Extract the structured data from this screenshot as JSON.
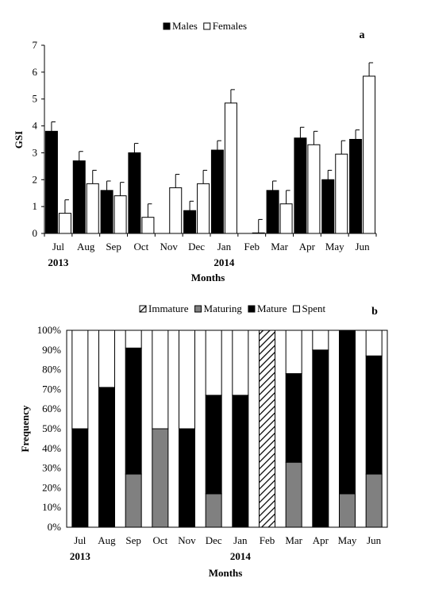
{
  "chart_data": [
    {
      "type": "bar",
      "panel_label": "a",
      "categories": [
        "Jul",
        "Aug",
        "Sep",
        "Oct",
        "Nov",
        "Dec",
        "Jan",
        "Feb",
        "Mar",
        "Apr",
        "May",
        "Jun"
      ],
      "year_labels": [
        {
          "label": "2013",
          "category": "Jul"
        },
        {
          "label": "2014",
          "category": "Jan"
        }
      ],
      "xlabel": "Months",
      "ylabel": "GSI",
      "ylim": [
        0,
        7
      ],
      "yticks": [
        "0",
        "1",
        "2",
        "3",
        "4",
        "5",
        "6",
        "7"
      ],
      "grid": false,
      "legend_position": "top-center",
      "series": [
        {
          "name": "Males",
          "color": "#000000",
          "values": [
            3.8,
            2.7,
            1.6,
            3.0,
            null,
            0.85,
            3.1,
            null,
            1.6,
            3.55,
            2.0,
            3.5
          ],
          "errors": [
            0.35,
            0.35,
            0.35,
            0.35,
            null,
            0.35,
            0.35,
            null,
            0.35,
            0.4,
            0.35,
            0.35
          ]
        },
        {
          "name": "Females",
          "color": "#ffffff",
          "values": [
            0.75,
            1.85,
            1.4,
            0.6,
            1.7,
            1.85,
            4.85,
            0.02,
            1.1,
            3.3,
            2.95,
            5.85
          ],
          "errors": [
            0.5,
            0.5,
            0.5,
            0.5,
            0.5,
            0.5,
            0.5,
            0.5,
            0.5,
            0.5,
            0.5,
            0.5
          ]
        }
      ]
    },
    {
      "type": "bar",
      "stacked": true,
      "panel_label": "b",
      "categories": [
        "Jul",
        "Aug",
        "Sep",
        "Oct",
        "Nov",
        "Dec",
        "Jan",
        "Feb",
        "Mar",
        "Apr",
        "May",
        "Jun"
      ],
      "year_labels": [
        {
          "label": "2013",
          "category": "Jul"
        },
        {
          "label": "2014",
          "category": "Jan"
        }
      ],
      "xlabel": "Months",
      "ylabel": "Frequency",
      "ylim": [
        0,
        100
      ],
      "yticks": [
        "0%",
        "10%",
        "20%",
        "30%",
        "40%",
        "50%",
        "60%",
        "70%",
        "80%",
        "90%",
        "100%"
      ],
      "grid": false,
      "legend_position": "top-center",
      "series": [
        {
          "name": "Immature",
          "color": "#ffffff",
          "pattern": "hatch",
          "values": [
            0,
            0,
            0,
            0,
            0,
            0,
            0,
            100,
            0,
            0,
            0,
            0
          ]
        },
        {
          "name": "Maturing",
          "color": "#808080",
          "values": [
            0,
            0,
            27,
            50,
            0,
            17,
            0,
            0,
            33,
            0,
            17,
            27
          ]
        },
        {
          "name": "Mature",
          "color": "#000000",
          "values": [
            50,
            71,
            64,
            0,
            50,
            50,
            67,
            0,
            45,
            90,
            83,
            60
          ]
        },
        {
          "name": "Spent",
          "color": "#ffffff",
          "values": [
            50,
            29,
            9,
            50,
            50,
            33,
            33,
            0,
            22,
            10,
            0,
            13
          ]
        }
      ]
    }
  ]
}
